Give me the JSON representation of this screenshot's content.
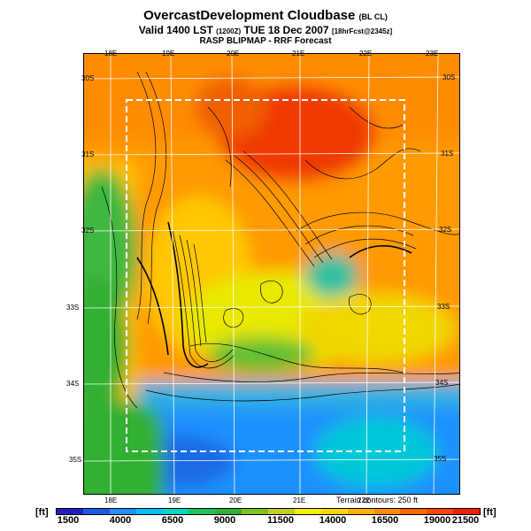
{
  "header": {
    "title": "OvercastDevelopment Cloudbase",
    "title_suffix": "(BL CL)",
    "valid_prefix": "Valid 1400 LST",
    "valid_utc": "(1200Z)",
    "valid_date": "TUE 18 Dec 2007",
    "forecast_tag": "[18hrFcst@2345z]",
    "subtitle": "RASP BLIPMAP - RRF Forecast"
  },
  "map": {
    "top_lon_labels": [
      "18E",
      "19E",
      "20E",
      "21E",
      "22E",
      "23E"
    ],
    "bottom_lon_labels": [
      "18E",
      "19E",
      "20E",
      "21E",
      "22E"
    ],
    "left_lat_labels": [
      "30S",
      "31S",
      "32S",
      "33S",
      "34S",
      "35S"
    ],
    "right_lat_labels": [
      "30S",
      "31S",
      "32S",
      "33S",
      "34S",
      "35S"
    ],
    "terrain_note": "Terrain contours: 250 ft"
  },
  "legend": {
    "unit_left": "[ft]",
    "unit_right": "[ft]",
    "labels": [
      "1500",
      "4000",
      "6500",
      "9000",
      "11500",
      "14000",
      "16500",
      "19000",
      "21500"
    ],
    "colors": [
      "#2020c0",
      "#1a5ae6",
      "#1e90ff",
      "#00bfff",
      "#00d8c0",
      "#20c060",
      "#30b030",
      "#80c020",
      "#c0d020",
      "#f0f000",
      "#ffd700",
      "#ffb000",
      "#ff8c00",
      "#ff6a00",
      "#ff4500",
      "#f02000"
    ]
  }
}
